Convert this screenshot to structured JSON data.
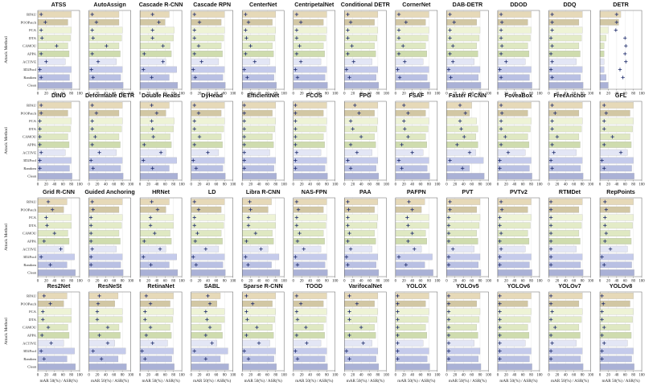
{
  "chart_data": {
    "type": "bar",
    "ylabel": "Attack Method",
    "xlabel": "mAR 50(%) / ASR(%)",
    "xlim": [
      0,
      100
    ],
    "xticks": [
      0,
      20,
      40,
      60,
      80,
      100
    ],
    "categories": [
      "RPAU",
      "POOPatch",
      "FCA",
      "DTA",
      "CAMOU",
      "APPA",
      "ACTIVE",
      "3D2Fool",
      "Random",
      "Clean"
    ],
    "category_colors": [
      "#e6d9b8",
      "#d2c7a4",
      "#eef3d6",
      "#e3ebc7",
      "#dfe8c2",
      "#cfdcae",
      "#e3e6f5",
      "#c5cbeb",
      "#b9c0e3",
      "#aab1d6"
    ],
    "bar_label": "mAR 50(%)",
    "marker_label": "ASR(%)",
    "marker_color": "#1d2b6b",
    "grid": true,
    "panels": [
      {
        "title": "ATSS",
        "bars": [
          80,
          72,
          80,
          78,
          72,
          75,
          66,
          80,
          76,
          82
        ],
        "markers": [
          8,
          18,
          8,
          10,
          45,
          8,
          20,
          5,
          8,
          null
        ]
      },
      {
        "title": "AutoAssign",
        "bars": [
          72,
          72,
          80,
          78,
          72,
          75,
          66,
          80,
          76,
          82
        ],
        "markers": [
          8,
          18,
          8,
          10,
          42,
          8,
          22,
          6,
          10,
          null
        ]
      },
      {
        "title": "Cascade R-CNN",
        "bars": [
          70,
          60,
          82,
          80,
          72,
          75,
          62,
          88,
          70,
          90
        ],
        "markers": [
          30,
          45,
          30,
          30,
          55,
          10,
          55,
          8,
          28,
          null
        ]
      },
      {
        "title": "Cascade RPN",
        "bars": [
          80,
          72,
          80,
          78,
          72,
          75,
          66,
          80,
          76,
          82
        ],
        "markers": [
          8,
          20,
          8,
          8,
          18,
          8,
          25,
          5,
          10,
          null
        ]
      },
      {
        "title": "CenterNet",
        "bars": [
          80,
          72,
          80,
          78,
          72,
          75,
          66,
          80,
          76,
          82
        ],
        "markers": [
          8,
          15,
          8,
          10,
          20,
          8,
          30,
          5,
          12,
          null
        ]
      },
      {
        "title": "CentripetalNet",
        "bars": [
          80,
          72,
          80,
          78,
          72,
          75,
          66,
          80,
          76,
          82
        ],
        "markers": [
          8,
          18,
          8,
          8,
          15,
          8,
          18,
          5,
          10,
          null
        ]
      },
      {
        "title": "Conditional DETR",
        "bars": [
          80,
          72,
          80,
          78,
          72,
          75,
          66,
          80,
          76,
          82
        ],
        "markers": [
          8,
          15,
          8,
          8,
          18,
          8,
          22,
          5,
          12,
          null
        ]
      },
      {
        "title": "CornerNet",
        "bars": [
          80,
          72,
          80,
          78,
          72,
          75,
          66,
          80,
          76,
          82
        ],
        "markers": [
          8,
          25,
          8,
          8,
          18,
          8,
          22,
          5,
          10,
          null
        ]
      },
      {
        "title": "DAB-DETR",
        "bars": [
          80,
          72,
          80,
          78,
          72,
          75,
          66,
          80,
          76,
          82
        ],
        "markers": [
          8,
          18,
          8,
          8,
          15,
          8,
          15,
          5,
          10,
          null
        ]
      },
      {
        "title": "DDOD",
        "bars": [
          80,
          72,
          80,
          78,
          72,
          75,
          66,
          80,
          76,
          82
        ],
        "markers": [
          8,
          10,
          8,
          8,
          10,
          8,
          20,
          5,
          8,
          null
        ]
      },
      {
        "title": "DDQ",
        "bars": [
          80,
          72,
          80,
          78,
          72,
          75,
          66,
          80,
          76,
          82
        ],
        "markers": [
          8,
          8,
          8,
          5,
          8,
          5,
          8,
          5,
          8,
          null
        ]
      },
      {
        "title": "DETR",
        "bars": [
          50,
          45,
          20,
          15,
          10,
          10,
          10,
          10,
          15,
          20
        ],
        "markers": [
          40,
          40,
          38,
          60,
          62,
          60,
          62,
          48,
          55,
          null
        ]
      },
      {
        "title": "DINO",
        "bars": [
          80,
          72,
          80,
          78,
          72,
          75,
          66,
          80,
          76,
          82
        ],
        "markers": [
          8,
          8,
          5,
          5,
          5,
          5,
          8,
          5,
          5,
          null
        ]
      },
      {
        "title": "Deformable DETR",
        "bars": [
          80,
          72,
          80,
          78,
          72,
          75,
          66,
          80,
          76,
          82
        ],
        "markers": [
          8,
          18,
          8,
          8,
          15,
          8,
          25,
          5,
          10,
          null
        ]
      },
      {
        "title": "Double Heads",
        "bars": [
          70,
          62,
          82,
          80,
          72,
          75,
          62,
          88,
          70,
          90
        ],
        "markers": [
          28,
          40,
          28,
          30,
          32,
          10,
          50,
          8,
          30,
          null
        ]
      },
      {
        "title": "DyHead",
        "bars": [
          80,
          72,
          80,
          78,
          72,
          75,
          66,
          80,
          76,
          82
        ],
        "markers": [
          8,
          18,
          8,
          8,
          20,
          8,
          40,
          5,
          12,
          null
        ]
      },
      {
        "title": "EfficientNet",
        "bars": [
          80,
          72,
          80,
          78,
          72,
          75,
          66,
          80,
          76,
          82
        ],
        "markers": [
          5,
          5,
          5,
          5,
          5,
          5,
          5,
          5,
          5,
          null
        ]
      },
      {
        "title": "FCOS",
        "bars": [
          80,
          72,
          80,
          78,
          72,
          75,
          66,
          80,
          76,
          82
        ],
        "markers": [
          5,
          5,
          5,
          5,
          5,
          5,
          8,
          5,
          5,
          null
        ]
      },
      {
        "title": "FPG",
        "bars": [
          80,
          72,
          80,
          78,
          72,
          75,
          66,
          80,
          76,
          82
        ],
        "markers": [
          25,
          35,
          15,
          20,
          40,
          15,
          30,
          8,
          15,
          null
        ]
      },
      {
        "title": "FSAF",
        "bars": [
          80,
          72,
          80,
          78,
          72,
          75,
          66,
          80,
          76,
          82
        ],
        "markers": [
          20,
          30,
          20,
          22,
          30,
          15,
          40,
          8,
          15,
          null
        ]
      },
      {
        "title": "Faster R-CNN",
        "bars": [
          60,
          55,
          72,
          75,
          70,
          75,
          70,
          88,
          55,
          90
        ],
        "markers": [
          32,
          45,
          32,
          35,
          42,
          25,
          55,
          8,
          38,
          null
        ]
      },
      {
        "title": "FoveaBox",
        "bars": [
          80,
          72,
          80,
          78,
          72,
          75,
          66,
          80,
          76,
          82
        ],
        "markers": [
          8,
          10,
          8,
          8,
          18,
          8,
          25,
          5,
          5,
          null
        ]
      },
      {
        "title": "FreeAnchor",
        "bars": [
          80,
          72,
          80,
          78,
          72,
          75,
          66,
          80,
          76,
          82
        ],
        "markers": [
          8,
          15,
          8,
          8,
          20,
          8,
          12,
          5,
          8,
          null
        ]
      },
      {
        "title": "GFL",
        "bars": [
          80,
          72,
          80,
          78,
          72,
          75,
          66,
          80,
          76,
          82
        ],
        "markers": [
          10,
          15,
          10,
          10,
          30,
          10,
          50,
          5,
          10,
          null
        ]
      },
      {
        "title": "Grid R-CNN",
        "bars": [
          70,
          62,
          80,
          80,
          72,
          75,
          62,
          88,
          70,
          90
        ],
        "markers": [
          25,
          35,
          20,
          22,
          40,
          15,
          55,
          8,
          30,
          null
        ]
      },
      {
        "title": "Guided Anchoring",
        "bars": [
          80,
          72,
          80,
          78,
          72,
          75,
          66,
          80,
          76,
          82
        ],
        "markers": [
          8,
          10,
          5,
          5,
          5,
          5,
          8,
          5,
          5,
          null
        ]
      },
      {
        "title": "HRNet",
        "bars": [
          70,
          62,
          80,
          80,
          72,
          75,
          62,
          88,
          70,
          90
        ],
        "markers": [
          28,
          42,
          25,
          25,
          35,
          10,
          48,
          8,
          26,
          null
        ]
      },
      {
        "title": "LD",
        "bars": [
          80,
          72,
          80,
          78,
          72,
          75,
          66,
          80,
          76,
          82
        ],
        "markers": [
          8,
          18,
          8,
          8,
          15,
          10,
          35,
          5,
          12,
          null
        ]
      },
      {
        "title": "Libra R-CNN",
        "bars": [
          70,
          62,
          80,
          80,
          72,
          75,
          62,
          88,
          70,
          90
        ],
        "markers": [
          18,
          20,
          15,
          15,
          32,
          10,
          45,
          8,
          14,
          null
        ]
      },
      {
        "title": "NAS-FPN",
        "bars": [
          80,
          72,
          80,
          78,
          72,
          75,
          66,
          80,
          76,
          82
        ],
        "markers": [
          8,
          12,
          8,
          8,
          15,
          10,
          25,
          5,
          10,
          null
        ]
      },
      {
        "title": "PAA",
        "bars": [
          80,
          72,
          80,
          78,
          72,
          75,
          66,
          80,
          76,
          82
        ],
        "markers": [
          8,
          10,
          8,
          8,
          12,
          8,
          15,
          5,
          8,
          null
        ]
      },
      {
        "title": "PAFPN",
        "bars": [
          70,
          62,
          80,
          80,
          72,
          75,
          62,
          88,
          70,
          90
        ],
        "markers": [
          32,
          40,
          28,
          30,
          40,
          30,
          45,
          8,
          25,
          null
        ]
      },
      {
        "title": "PVT",
        "bars": [
          80,
          72,
          80,
          78,
          72,
          75,
          66,
          80,
          76,
          82
        ],
        "markers": [
          8,
          8,
          5,
          5,
          5,
          5,
          15,
          5,
          5,
          null
        ]
      },
      {
        "title": "PVTv2",
        "bars": [
          80,
          72,
          80,
          78,
          72,
          75,
          66,
          80,
          76,
          82
        ],
        "markers": [
          8,
          10,
          5,
          5,
          8,
          5,
          8,
          5,
          5,
          null
        ]
      },
      {
        "title": "RTMDet",
        "bars": [
          80,
          72,
          80,
          78,
          72,
          75,
          66,
          80,
          76,
          82
        ],
        "markers": [
          5,
          5,
          5,
          5,
          5,
          5,
          5,
          5,
          5,
          null
        ]
      },
      {
        "title": "RepPoints",
        "bars": [
          80,
          72,
          80,
          78,
          72,
          75,
          66,
          80,
          76,
          82
        ],
        "markers": [
          12,
          15,
          12,
          12,
          15,
          12,
          25,
          5,
          10,
          null
        ]
      },
      {
        "title": "Res2Net",
        "bars": [
          70,
          62,
          80,
          80,
          72,
          75,
          62,
          88,
          70,
          90
        ],
        "markers": [
          15,
          30,
          12,
          12,
          25,
          10,
          32,
          8,
          15,
          null
        ]
      },
      {
        "title": "ResNeSt",
        "bars": [
          70,
          62,
          80,
          80,
          72,
          75,
          62,
          88,
          70,
          90
        ],
        "markers": [
          25,
          22,
          20,
          20,
          45,
          25,
          45,
          10,
          30,
          null
        ]
      },
      {
        "title": "RetinaNet",
        "bars": [
          80,
          72,
          80,
          78,
          72,
          75,
          66,
          80,
          76,
          82
        ],
        "markers": [
          15,
          25,
          12,
          12,
          25,
          15,
          30,
          5,
          12,
          null
        ]
      },
      {
        "title": "SABL",
        "bars": [
          70,
          62,
          80,
          80,
          72,
          75,
          62,
          88,
          70,
          90
        ],
        "markers": [
          40,
          45,
          35,
          38,
          45,
          35,
          50,
          8,
          35,
          null
        ]
      },
      {
        "title": "Sparse R-CNN",
        "bars": [
          80,
          72,
          80,
          78,
          72,
          75,
          66,
          80,
          76,
          82
        ],
        "markers": [
          10,
          25,
          10,
          12,
          35,
          10,
          40,
          5,
          15,
          null
        ]
      },
      {
        "title": "TOOD",
        "bars": [
          80,
          72,
          80,
          78,
          72,
          75,
          66,
          80,
          76,
          82
        ],
        "markers": [
          8,
          18,
          8,
          10,
          30,
          8,
          32,
          5,
          10,
          null
        ]
      },
      {
        "title": "VarifocalNet",
        "bars": [
          80,
          72,
          80,
          78,
          72,
          75,
          66,
          80,
          76,
          82
        ],
        "markers": [
          12,
          30,
          12,
          12,
          40,
          12,
          45,
          5,
          12,
          null
        ]
      },
      {
        "title": "YOLOX",
        "bars": [
          80,
          72,
          80,
          78,
          72,
          75,
          66,
          80,
          76,
          82
        ],
        "markers": [
          5,
          5,
          5,
          5,
          5,
          5,
          5,
          5,
          5,
          null
        ]
      },
      {
        "title": "YOLOv5",
        "bars": [
          80,
          72,
          80,
          78,
          72,
          75,
          66,
          80,
          76,
          82
        ],
        "markers": [
          5,
          5,
          5,
          5,
          5,
          5,
          5,
          5,
          5,
          null
        ]
      },
      {
        "title": "YOLOv6",
        "bars": [
          80,
          72,
          80,
          78,
          72,
          75,
          66,
          80,
          76,
          82
        ],
        "markers": [
          5,
          5,
          5,
          5,
          5,
          5,
          5,
          5,
          5,
          null
        ]
      },
      {
        "title": "YOLOv7",
        "bars": [
          80,
          72,
          80,
          78,
          72,
          75,
          66,
          80,
          76,
          82
        ],
        "markers": [
          5,
          5,
          8,
          5,
          15,
          5,
          8,
          5,
          5,
          null
        ]
      },
      {
        "title": "YOLOv8",
        "bars": [
          80,
          72,
          80,
          78,
          72,
          75,
          66,
          80,
          76,
          82
        ],
        "markers": [
          5,
          8,
          5,
          5,
          10,
          5,
          10,
          5,
          5,
          null
        ]
      }
    ]
  }
}
